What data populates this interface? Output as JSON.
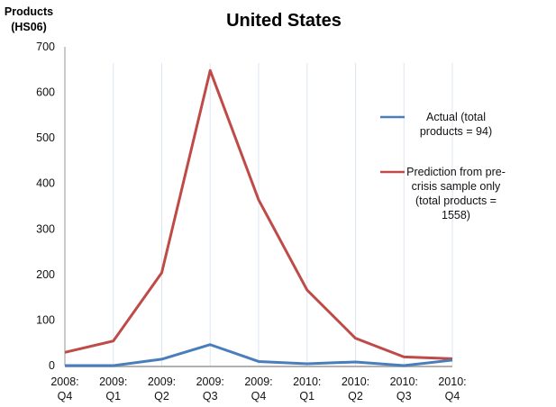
{
  "chart_data": {
    "type": "line",
    "title": "United States",
    "ylabel": [
      "Products",
      "(HS06)"
    ],
    "xlabel": "",
    "categories": [
      [
        "2008:",
        "Q4"
      ],
      [
        "2009:",
        "Q1"
      ],
      [
        "2009:",
        "Q2"
      ],
      [
        "2009:",
        "Q3"
      ],
      [
        "2009:",
        "Q4"
      ],
      [
        "2010:",
        "Q1"
      ],
      [
        "2010:",
        "Q2"
      ],
      [
        "2010:",
        "Q3"
      ],
      [
        "2010:",
        "Q4"
      ]
    ],
    "ylim": [
      0,
      700
    ],
    "yticks": [
      0,
      100,
      200,
      300,
      400,
      500,
      600,
      700
    ],
    "grid": "vertical-light",
    "legend_position": "right",
    "series": [
      {
        "name": "Actual (total products = 94)",
        "legend_lines": [
          "Actual (total",
          "products = 94)"
        ],
        "color": "#4a7ebb",
        "values": [
          0,
          0,
          14,
          46,
          9,
          4,
          8,
          0,
          12
        ]
      },
      {
        "name": "Prediction from pre-crisis sample only (total products = 1558)",
        "legend_lines": [
          "Prediction from pre-",
          "crisis sample only",
          "(total products =",
          "1558)"
        ],
        "color": "#be4b48",
        "values": [
          29,
          54,
          204,
          648,
          364,
          166,
          60,
          19,
          15
        ]
      }
    ]
  }
}
